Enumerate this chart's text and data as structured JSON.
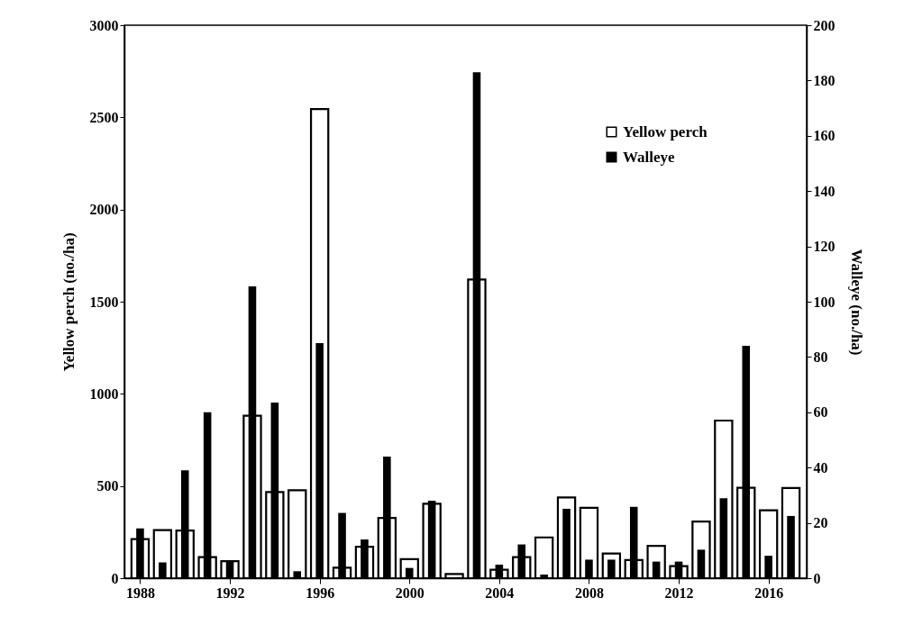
{
  "chart_data": {
    "type": "bar",
    "ylabel": "Yellow perch (no./ha)",
    "y2label": "Walleye  (no./ha)",
    "x": [
      1988,
      1989,
      1990,
      1991,
      1992,
      1993,
      1994,
      1995,
      1996,
      1997,
      1998,
      1999,
      2000,
      2001,
      2002,
      2003,
      2004,
      2005,
      2006,
      2007,
      2008,
      2009,
      2010,
      2011,
      2012,
      2013,
      2014,
      2015,
      2016,
      2017
    ],
    "series": [
      {
        "name": "Yellow perch",
        "color": "#ffffff",
        "values": [
          212,
          261,
          258,
          114,
          92,
          881,
          467,
          477,
          2545,
          57,
          170,
          327,
          103,
          404,
          23,
          1620,
          46,
          114,
          221,
          438,
          382,
          134,
          98,
          175,
          65,
          307,
          855,
          490,
          368,
          489
        ]
      },
      {
        "name": "Walleye",
        "color": "#000000",
        "axis": "y2",
        "values": [
          18,
          5.7,
          39,
          60,
          6,
          105.5,
          63.5,
          2.5,
          85,
          23.6,
          14,
          44,
          3.7,
          28,
          0,
          183,
          4.9,
          12.2,
          1.3,
          25.1,
          6.7,
          6.7,
          25.8,
          6,
          6,
          10.3,
          28.9,
          84,
          8.1,
          22.5
        ]
      }
    ],
    "xlim": [
      1987.5,
      2017.5
    ],
    "xticks": [
      1988,
      1992,
      1996,
      2000,
      2004,
      2008,
      2012,
      2016
    ],
    "ylim": [
      0,
      3000
    ],
    "yticks": [
      0,
      500,
      1000,
      1500,
      2000,
      2500,
      3000
    ],
    "y2lim": [
      0,
      200
    ],
    "y2ticks": [
      0,
      20,
      40,
      60,
      80,
      100,
      120,
      140,
      160,
      180,
      200
    ],
    "grid": false,
    "legend": "top right"
  }
}
